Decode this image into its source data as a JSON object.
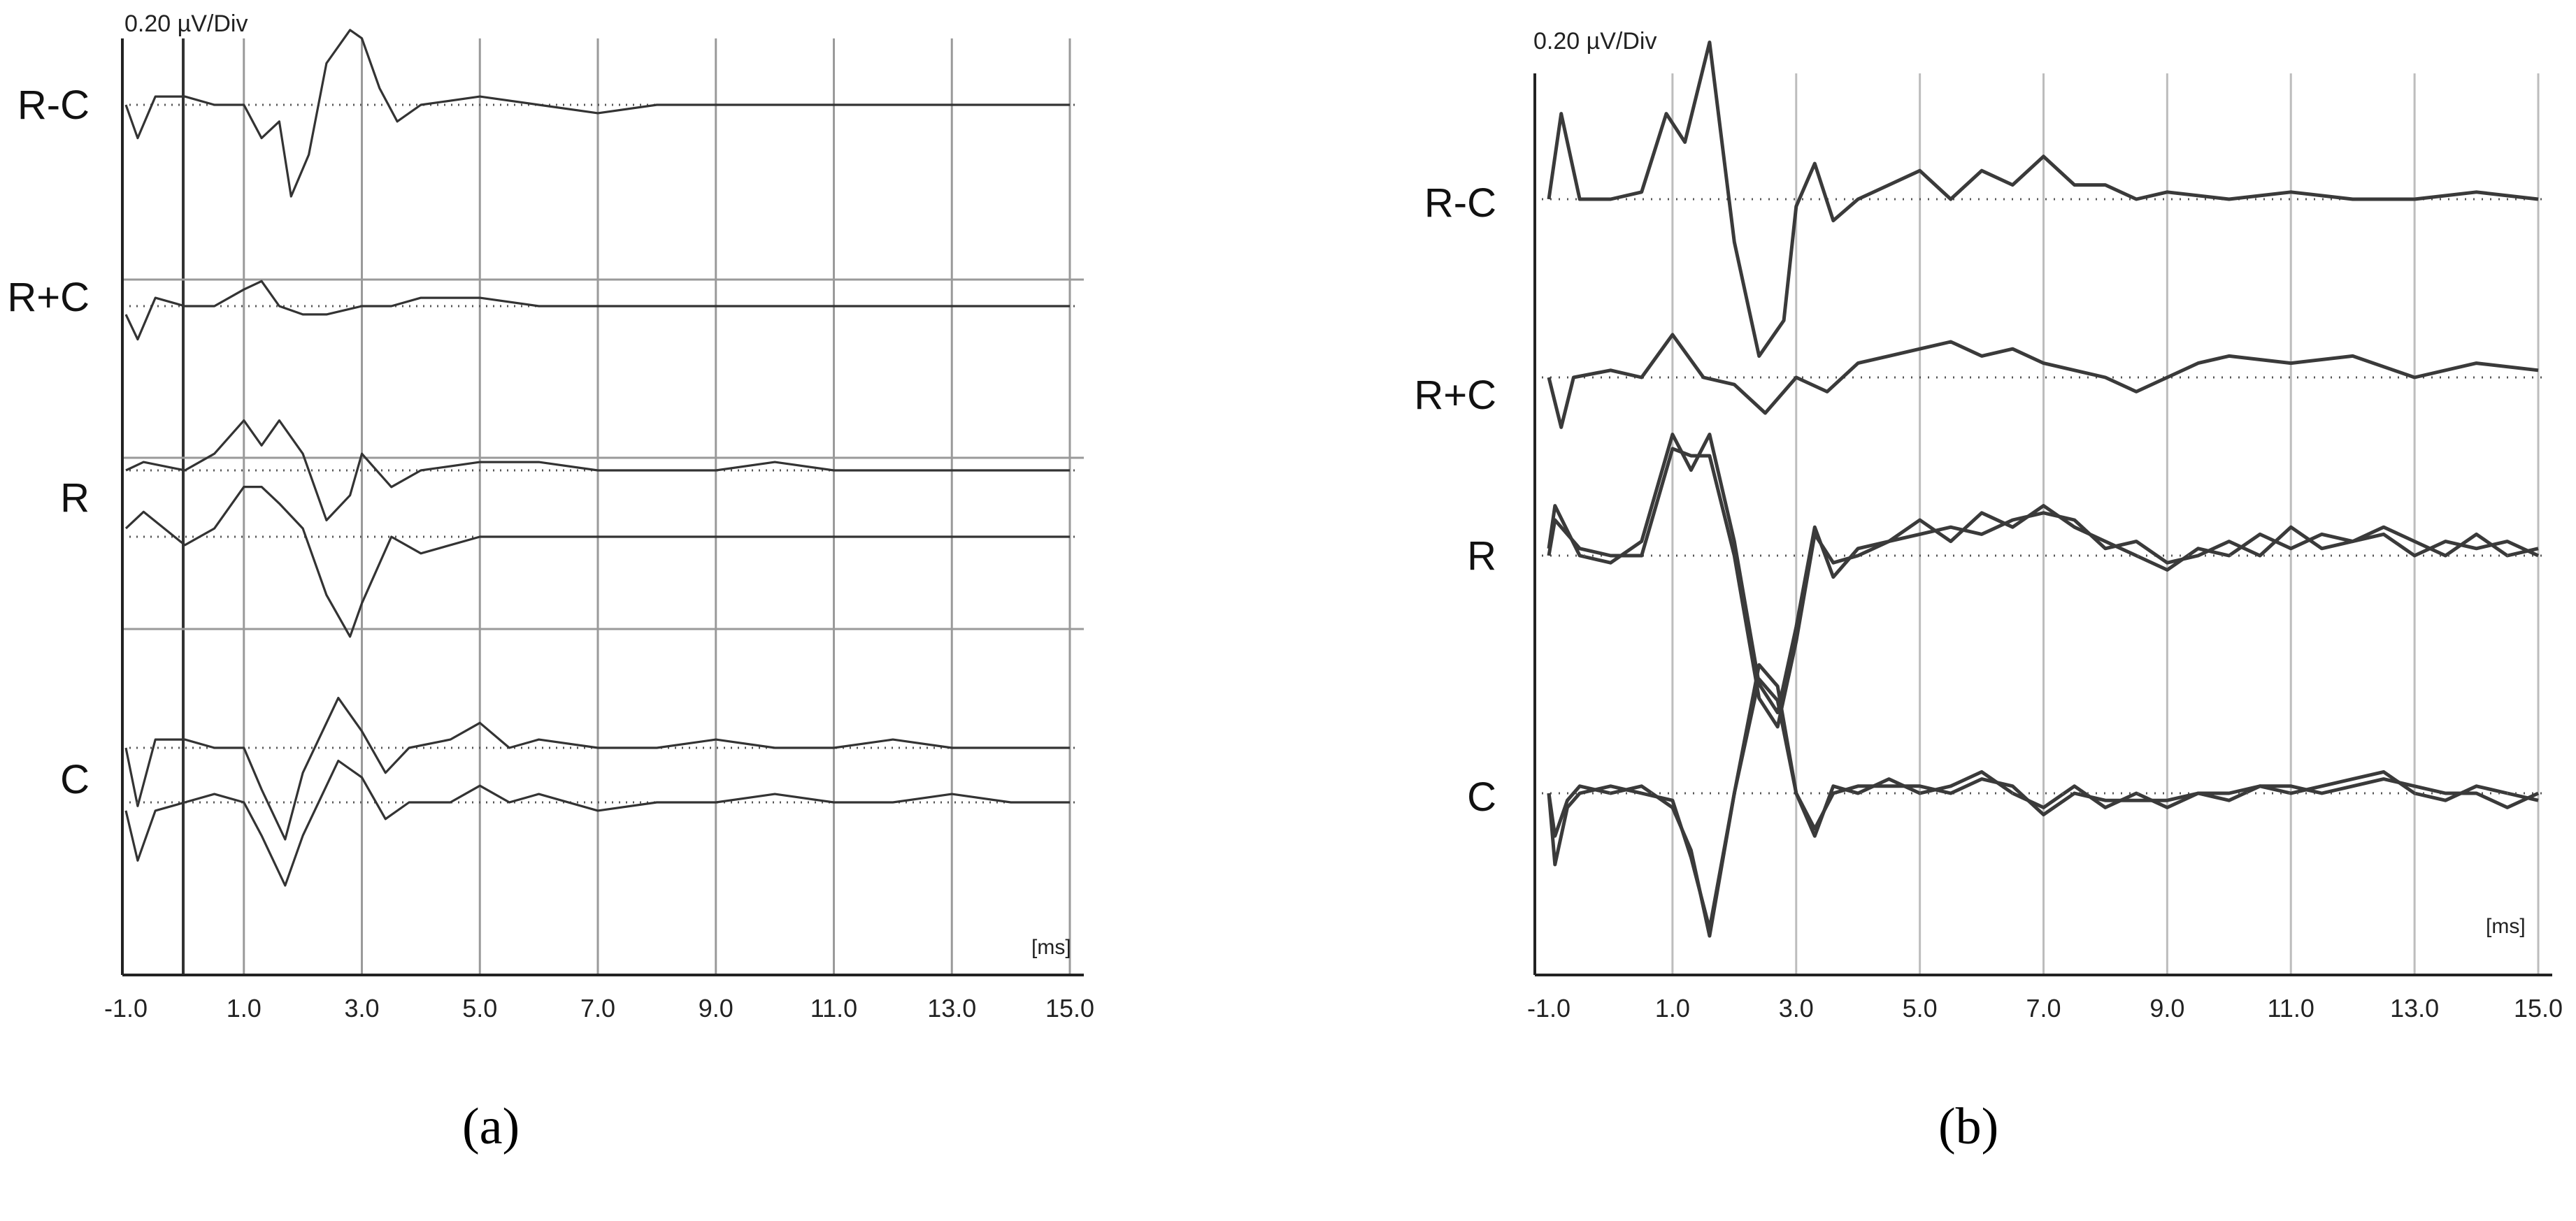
{
  "chart_data": [
    {
      "type": "line",
      "panel": "a",
      "caption": "(a)",
      "scale_label": "0.20 µV/Div",
      "unit_label": "[ms]",
      "x_ticks": [
        "-1.0",
        "1.0",
        "3.0",
        "5.0",
        "7.0",
        "9.0",
        "11.0",
        "13.0",
        "15.0"
      ],
      "xlim": [
        -1.0,
        15.0
      ],
      "grid": true,
      "style": {
        "line_color": "#333333",
        "grid_color": "#9a9a9a",
        "dotted_color": "#555555"
      },
      "groups": [
        {
          "label": "R-C",
          "traces": [
            {
              "baseline": 0.1,
              "x": [
                -1.0,
                -0.8,
                -0.5,
                0.0,
                0.5,
                1.0,
                1.3,
                1.6,
                1.8,
                2.1,
                2.4,
                2.8,
                3.0,
                3.3,
                3.6,
                4.0,
                5.0,
                6.0,
                7.0,
                8.0,
                9.0,
                10.0,
                11.0,
                12.0,
                13.0,
                14.0,
                15.0
              ],
              "y": [
                0.0,
                -0.2,
                0.05,
                0.05,
                0.0,
                0.0,
                -0.2,
                -0.1,
                -0.55,
                -0.3,
                0.25,
                0.45,
                0.4,
                0.1,
                -0.1,
                0.0,
                0.05,
                0.0,
                -0.05,
                0.0,
                0.0,
                0.0,
                0.0,
                0.0,
                0.0,
                0.0,
                0.0
              ]
            }
          ]
        },
        {
          "label": "R+C",
          "traces": [
            {
              "baseline": 0.1,
              "x": [
                -1.0,
                -0.8,
                -0.5,
                0.0,
                0.5,
                1.0,
                1.3,
                1.6,
                2.0,
                2.4,
                3.0,
                3.5,
                4.0,
                5.0,
                6.0,
                7.0,
                8.0,
                9.0,
                10.0,
                11.0,
                12.0,
                13.0,
                14.0,
                15.0
              ],
              "y": [
                -0.05,
                -0.2,
                0.05,
                0.0,
                0.0,
                0.1,
                0.15,
                0.0,
                -0.05,
                -0.05,
                0.0,
                0.0,
                0.05,
                0.05,
                0.0,
                0.0,
                0.0,
                0.0,
                0.0,
                0.0,
                0.0,
                0.0,
                0.0,
                0.0
              ]
            }
          ]
        },
        {
          "label": "R",
          "traces": [
            {
              "baseline": 0.1,
              "x": [
                -1.0,
                -0.7,
                0.0,
                0.5,
                1.0,
                1.3,
                1.6,
                2.0,
                2.4,
                2.8,
                3.0,
                3.5,
                4.0,
                5.0,
                6.0,
                7.0,
                8.0,
                9.0,
                10.0,
                11.0,
                12.0,
                13.0,
                14.0,
                15.0
              ],
              "y": [
                0.0,
                0.05,
                0.0,
                0.1,
                0.3,
                0.15,
                0.3,
                0.1,
                -0.3,
                -0.15,
                0.1,
                -0.1,
                0.0,
                0.05,
                0.05,
                0.0,
                0.0,
                0.0,
                0.05,
                0.0,
                0.0,
                0.0,
                0.0,
                0.0
              ]
            },
            {
              "baseline": 0.1,
              "x": [
                -1.0,
                -0.7,
                0.0,
                0.5,
                1.0,
                1.3,
                1.6,
                2.0,
                2.4,
                2.8,
                3.0,
                3.5,
                4.0,
                5.0,
                6.0,
                7.0,
                8.0,
                9.0,
                10.0,
                11.0,
                12.0,
                13.0,
                14.0,
                15.0
              ],
              "y": [
                0.05,
                0.15,
                -0.05,
                0.05,
                0.3,
                0.3,
                0.2,
                0.05,
                -0.35,
                -0.6,
                -0.4,
                0.0,
                -0.1,
                0.0,
                0.0,
                0.0,
                0.0,
                0.0,
                0.0,
                0.0,
                0.0,
                0.0,
                0.0,
                0.0
              ]
            }
          ]
        },
        {
          "label": "C",
          "traces": [
            {
              "baseline": 0.1,
              "x": [
                -1.0,
                -0.8,
                -0.5,
                0.0,
                0.5,
                1.0,
                1.3,
                1.7,
                2.0,
                2.6,
                3.0,
                3.4,
                3.8,
                4.5,
                5.0,
                5.5,
                6.0,
                7.0,
                8.0,
                9.0,
                10.0,
                11.0,
                12.0,
                13.0,
                14.0,
                15.0
              ],
              "y": [
                0.0,
                -0.35,
                0.05,
                0.05,
                0.0,
                0.0,
                -0.25,
                -0.55,
                -0.15,
                0.3,
                0.1,
                -0.15,
                0.0,
                0.05,
                0.15,
                0.0,
                0.05,
                0.0,
                0.0,
                0.05,
                0.0,
                0.0,
                0.05,
                0.0,
                0.0,
                0.0
              ]
            },
            {
              "baseline": 0.1,
              "x": [
                -1.0,
                -0.8,
                -0.5,
                0.0,
                0.5,
                1.0,
                1.3,
                1.7,
                2.0,
                2.6,
                3.0,
                3.4,
                3.8,
                4.5,
                5.0,
                5.5,
                6.0,
                7.0,
                8.0,
                9.0,
                10.0,
                11.0,
                12.0,
                13.0,
                14.0,
                15.0
              ],
              "y": [
                -0.05,
                -0.35,
                -0.05,
                0.0,
                0.05,
                0.0,
                -0.2,
                -0.5,
                -0.2,
                0.25,
                0.15,
                -0.1,
                0.0,
                0.0,
                0.1,
                0.0,
                0.05,
                -0.05,
                0.0,
                0.0,
                0.05,
                0.0,
                0.0,
                0.05,
                0.0,
                0.0
              ]
            }
          ]
        }
      ]
    },
    {
      "type": "line",
      "panel": "b",
      "caption": "(b)",
      "scale_label": "0.20 µV/Div",
      "unit_label": "[ms]",
      "x_ticks": [
        "-1.0",
        "1.0",
        "3.0",
        "5.0",
        "7.0",
        "9.0",
        "11.0",
        "13.0",
        "15.0"
      ],
      "xlim": [
        -1.0,
        15.0
      ],
      "grid": true,
      "style": {
        "line_color": "#3a3a3a",
        "grid_color": "#bdbdbd",
        "dotted_color": "#555555"
      },
      "groups": [
        {
          "label": "R-C",
          "traces": [
            {
              "baseline": 0.1,
              "x": [
                -1.0,
                -0.8,
                -0.5,
                0.0,
                0.5,
                0.9,
                1.2,
                1.6,
                2.0,
                2.4,
                2.8,
                3.0,
                3.3,
                3.6,
                4.0,
                4.5,
                5.0,
                5.5,
                6.0,
                6.5,
                7.0,
                7.5,
                8.0,
                8.5,
                9.0,
                10.0,
                11.0,
                12.0,
                13.0,
                14.0,
                15.0
              ],
              "y": [
                0.0,
                0.6,
                0.0,
                0.0,
                0.05,
                0.6,
                0.4,
                1.1,
                -0.3,
                -1.1,
                -0.85,
                -0.05,
                0.25,
                -0.15,
                0.0,
                0.1,
                0.2,
                0.0,
                0.2,
                0.1,
                0.3,
                0.1,
                0.1,
                0.0,
                0.05,
                0.0,
                0.05,
                0.0,
                0.0,
                0.05,
                0.0
              ]
            }
          ]
        },
        {
          "label": "R+C",
          "traces": [
            {
              "baseline": 0.1,
              "x": [
                -1.0,
                -0.8,
                -0.6,
                0.0,
                0.5,
                1.0,
                1.5,
                2.0,
                2.5,
                3.0,
                3.5,
                4.0,
                4.5,
                5.0,
                5.5,
                6.0,
                6.5,
                7.0,
                7.5,
                8.0,
                8.5,
                9.0,
                9.5,
                10.0,
                11.0,
                12.0,
                13.0,
                14.0,
                15.0
              ],
              "y": [
                0.0,
                -0.35,
                0.0,
                0.05,
                0.0,
                0.3,
                0.0,
                -0.05,
                -0.25,
                0.0,
                -0.1,
                0.1,
                0.15,
                0.2,
                0.25,
                0.15,
                0.2,
                0.1,
                0.05,
                0.0,
                -0.1,
                0.0,
                0.1,
                0.15,
                0.1,
                0.15,
                0.0,
                0.1,
                0.05
              ]
            }
          ]
        },
        {
          "label": "R",
          "traces": [
            {
              "baseline": 0.1,
              "x": [
                -1.0,
                -0.9,
                -0.5,
                0.0,
                0.5,
                1.0,
                1.3,
                1.6,
                2.0,
                2.4,
                2.7,
                3.0,
                3.3,
                3.6,
                4.0,
                4.5,
                5.0,
                5.5,
                6.0,
                6.5,
                7.0,
                7.5,
                8.0,
                8.5,
                9.0,
                9.5,
                10.0,
                10.5,
                11.0,
                11.5,
                12.0,
                12.5,
                13.0,
                13.5,
                14.0,
                14.5,
                15.0
              ],
              "y": [
                0.05,
                0.35,
                0.0,
                -0.05,
                0.1,
                0.85,
                0.6,
                0.85,
                0.1,
                -0.9,
                -1.1,
                -0.5,
                0.2,
                -0.15,
                0.05,
                0.1,
                0.25,
                0.1,
                0.3,
                0.2,
                0.35,
                0.2,
                0.1,
                0.0,
                -0.1,
                0.05,
                0.0,
                0.15,
                0.05,
                0.15,
                0.1,
                0.2,
                0.1,
                0.0,
                0.15,
                0.0,
                0.05
              ]
            },
            {
              "baseline": 0.1,
              "x": [
                -1.0,
                -0.9,
                -0.5,
                0.0,
                0.5,
                1.0,
                1.3,
                1.6,
                2.0,
                2.4,
                2.7,
                3.0,
                3.3,
                3.6,
                4.0,
                4.5,
                5.0,
                5.5,
                6.0,
                6.5,
                7.0,
                7.5,
                8.0,
                8.5,
                9.0,
                9.5,
                10.0,
                10.5,
                11.0,
                11.5,
                12.0,
                12.5,
                13.0,
                13.5,
                14.0,
                14.5,
                15.0
              ],
              "y": [
                0.0,
                0.25,
                0.05,
                0.0,
                0.0,
                0.75,
                0.7,
                0.7,
                0.0,
                -1.0,
                -1.2,
                -0.6,
                0.15,
                -0.05,
                0.0,
                0.1,
                0.15,
                0.2,
                0.15,
                0.25,
                0.3,
                0.25,
                0.05,
                0.1,
                -0.05,
                0.0,
                0.1,
                0.0,
                0.2,
                0.05,
                0.1,
                0.15,
                0.0,
                0.1,
                0.05,
                0.1,
                0.0
              ]
            }
          ]
        },
        {
          "label": "C",
          "traces": [
            {
              "baseline": 0.1,
              "x": [
                -1.0,
                -0.9,
                -0.7,
                -0.5,
                0.0,
                0.5,
                1.0,
                1.3,
                1.6,
                2.0,
                2.4,
                2.7,
                3.0,
                3.3,
                3.6,
                4.0,
                4.5,
                5.0,
                5.5,
                6.0,
                6.5,
                7.0,
                7.5,
                8.0,
                8.5,
                9.0,
                9.5,
                10.0,
                10.5,
                11.0,
                11.5,
                12.0,
                12.5,
                13.0,
                13.5,
                14.0,
                14.5,
                15.0
              ],
              "y": [
                0.0,
                -0.3,
                -0.05,
                0.05,
                0.0,
                0.05,
                -0.1,
                -0.4,
                -1.0,
                0.0,
                0.8,
                0.65,
                0.0,
                -0.3,
                0.05,
                0.0,
                0.1,
                0.0,
                0.05,
                0.15,
                0.0,
                -0.1,
                0.05,
                -0.1,
                0.0,
                -0.1,
                0.0,
                -0.05,
                0.05,
                0.0,
                0.05,
                0.1,
                0.15,
                0.0,
                -0.05,
                0.05,
                0.0,
                -0.05
              ]
            },
            {
              "baseline": 0.1,
              "x": [
                -1.0,
                -0.9,
                -0.7,
                -0.5,
                0.0,
                0.5,
                1.0,
                1.3,
                1.6,
                2.0,
                2.4,
                2.7,
                3.0,
                3.3,
                3.6,
                4.0,
                4.5,
                5.0,
                5.5,
                6.0,
                6.5,
                7.0,
                7.5,
                8.0,
                8.5,
                9.0,
                9.5,
                10.0,
                10.5,
                11.0,
                11.5,
                12.0,
                12.5,
                13.0,
                13.5,
                14.0,
                14.5,
                15.0
              ],
              "y": [
                0.0,
                -0.5,
                -0.1,
                0.0,
                0.05,
                0.0,
                -0.05,
                -0.45,
                -0.95,
                0.0,
                0.9,
                0.75,
                0.0,
                -0.25,
                0.0,
                0.05,
                0.05,
                0.05,
                0.0,
                0.1,
                0.05,
                -0.15,
                0.0,
                -0.05,
                -0.05,
                -0.05,
                0.0,
                0.0,
                0.05,
                0.05,
                0.0,
                0.05,
                0.1,
                0.05,
                0.0,
                0.0,
                -0.1,
                0.0
              ]
            }
          ]
        }
      ]
    }
  ]
}
